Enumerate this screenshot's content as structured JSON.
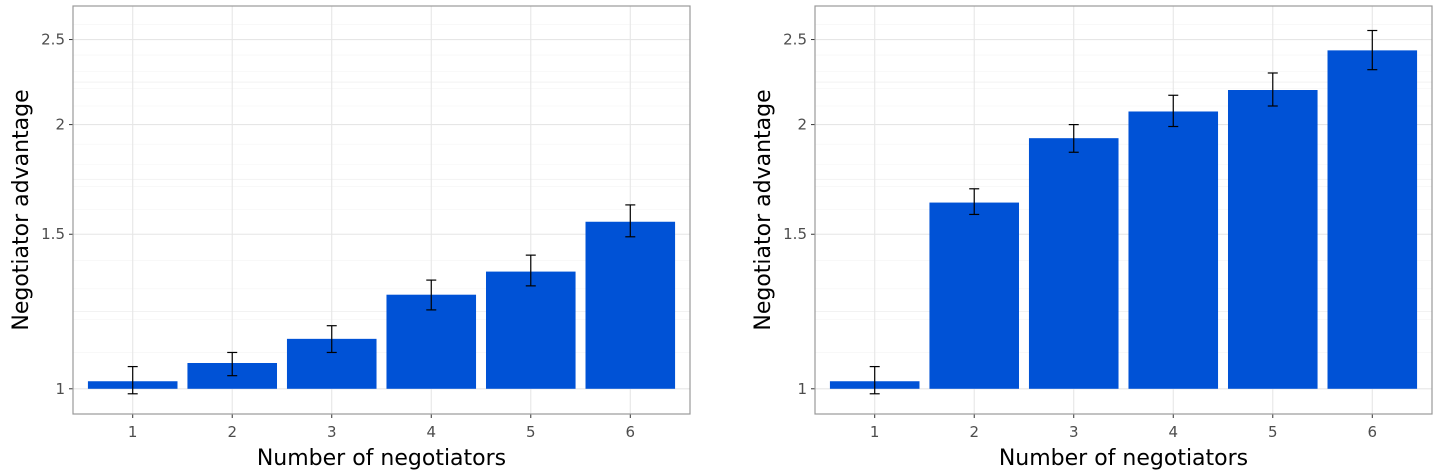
{
  "chart_data": [
    {
      "type": "bar",
      "xlabel": "Number of negotiators",
      "ylabel": "Negotiator advantage",
      "yscale": "log",
      "ylim": [
        0.936,
        2.73
      ],
      "yticks": [
        "1",
        "1.5",
        "2",
        "2.5"
      ],
      "categories": [
        "1",
        "2",
        "3",
        "4",
        "5",
        "6"
      ],
      "values": [
        1.02,
        1.07,
        1.14,
        1.28,
        1.36,
        1.55
      ],
      "error_low": [
        0.987,
        1.035,
        1.1,
        1.23,
        1.31,
        1.49
      ],
      "error_high": [
        1.06,
        1.1,
        1.18,
        1.33,
        1.42,
        1.62
      ],
      "bar_color": "#0052D6",
      "grid": true
    },
    {
      "type": "bar",
      "xlabel": "Number of negotiators",
      "ylabel": "Negotiator advantage",
      "yscale": "log",
      "ylim": [
        0.936,
        2.73
      ],
      "yticks": [
        "1",
        "1.5",
        "2",
        "2.5"
      ],
      "categories": [
        "1",
        "2",
        "3",
        "4",
        "5",
        "6"
      ],
      "values": [
        1.02,
        1.63,
        1.93,
        2.07,
        2.19,
        2.43
      ],
      "error_low": [
        0.987,
        1.58,
        1.86,
        1.99,
        2.1,
        2.31
      ],
      "error_high": [
        1.06,
        1.69,
        2.0,
        2.16,
        2.29,
        2.56
      ],
      "bar_color": "#0052D6",
      "grid": true
    }
  ]
}
